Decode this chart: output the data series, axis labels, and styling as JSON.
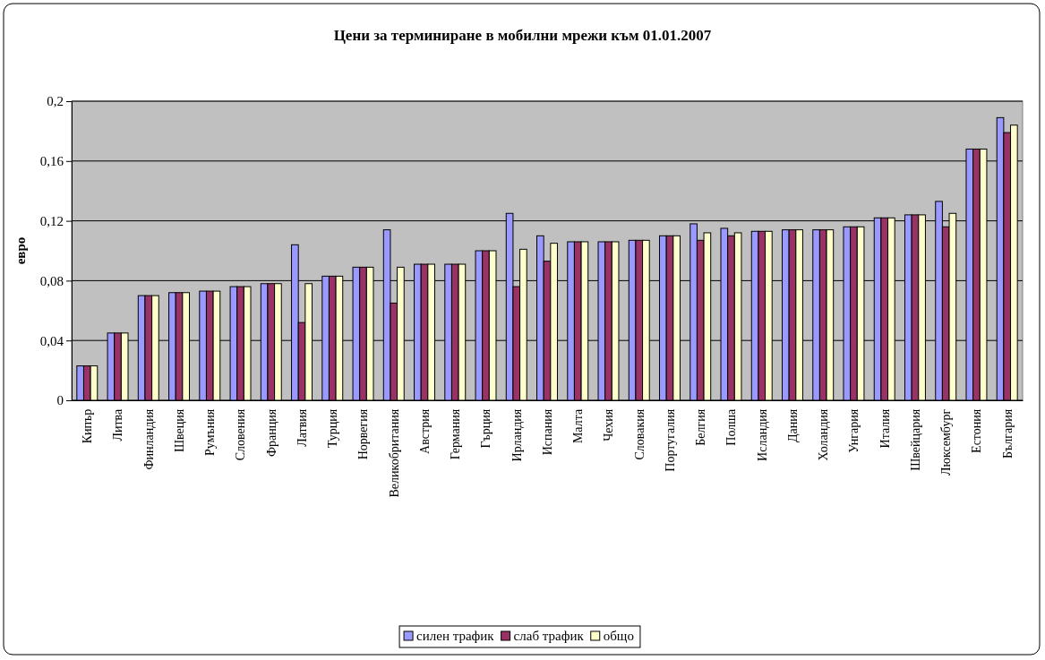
{
  "chart_data": {
    "type": "bar",
    "title": "Цени за терминиране в мобилни мрежи към 01.01.2007",
    "ylabel": "евро",
    "categories": [
      "Кипър",
      "Литва",
      "Финландия",
      "Швеция",
      "Румъния",
      "Словения",
      "Франция",
      "Латвия",
      "Турция",
      "Норвегия",
      "Великобритания",
      "Австрия",
      "Германия",
      "Гърция",
      "Ирландия",
      "Испания",
      "Малта",
      "Чехия",
      "Словакия",
      "Португалия",
      "Белгия",
      "Полша",
      "Исландия",
      "Дания",
      "Холандия",
      "Унгария",
      "Италия",
      "Швейцария",
      "Люксембург",
      "Естония",
      "България"
    ],
    "series": [
      {
        "name": "силен трафик",
        "color": "#9999ff",
        "values": [
          0.023,
          0.045,
          0.07,
          0.072,
          0.073,
          0.076,
          0.078,
          0.104,
          0.083,
          0.089,
          0.114,
          0.091,
          0.091,
          0.1,
          0.125,
          0.11,
          0.106,
          0.106,
          0.107,
          0.11,
          0.118,
          0.115,
          0.113,
          0.114,
          0.114,
          0.116,
          0.122,
          0.124,
          0.133,
          0.168,
          0.189
        ]
      },
      {
        "name": "слаб трафик",
        "color": "#993366",
        "values": [
          0.023,
          0.045,
          0.07,
          0.072,
          0.073,
          0.076,
          0.078,
          0.052,
          0.083,
          0.089,
          0.065,
          0.091,
          0.091,
          0.1,
          0.076,
          0.093,
          0.106,
          0.106,
          0.107,
          0.11,
          0.107,
          0.11,
          0.113,
          0.114,
          0.114,
          0.116,
          0.122,
          0.124,
          0.116,
          0.168,
          0.179
        ]
      },
      {
        "name": "общо",
        "color": "#ffffcc",
        "values": [
          0.023,
          0.045,
          0.07,
          0.072,
          0.073,
          0.076,
          0.078,
          0.078,
          0.083,
          0.089,
          0.089,
          0.091,
          0.091,
          0.1,
          0.101,
          0.105,
          0.106,
          0.106,
          0.107,
          0.11,
          0.112,
          0.112,
          0.113,
          0.114,
          0.114,
          0.116,
          0.122,
          0.124,
          0.125,
          0.168,
          0.184
        ]
      }
    ],
    "ylim": [
      0,
      0.2
    ],
    "yticks": [
      0,
      {
        "value": 0.04,
        "label": "0,04"
      },
      {
        "value": 0.08,
        "label": "0,08"
      },
      {
        "value": 0.12,
        "label": "0,12"
      },
      {
        "value": 0.16,
        "label": "0,16"
      },
      {
        "value": 0.2,
        "label": "0,2"
      }
    ],
    "grid": "y",
    "legend": "bottom"
  }
}
